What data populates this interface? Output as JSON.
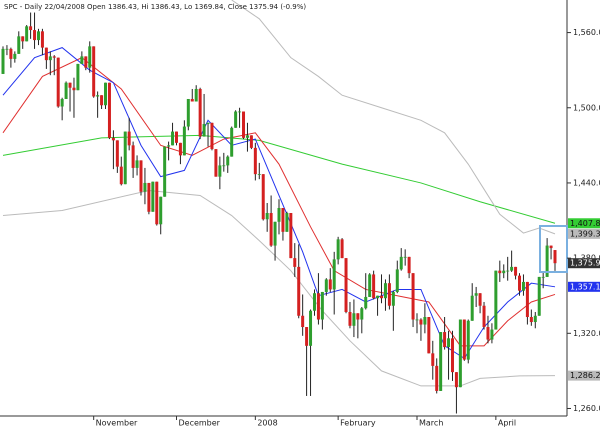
{
  "chart_data": {
    "type": "candlestick",
    "title": "SPC - Daily 22/04/2008 Open 1386.43, Hi 1386.43, Lo 1369.84, Close 1375.94 (-0.9%)",
    "categories": [
      null,
      null,
      null,
      null,
      null,
      null,
      null,
      null,
      null,
      null,
      null,
      null,
      null,
      null,
      null,
      null,
      null,
      null,
      null,
      null,
      null,
      null,
      null,
      "November",
      null,
      null,
      null,
      null,
      null,
      null,
      null,
      null,
      null,
      null,
      null,
      null,
      null,
      null,
      null,
      null,
      null,
      null,
      null,
      null,
      "December",
      null,
      null,
      null,
      null,
      null,
      null,
      null,
      null,
      null,
      null,
      null,
      null,
      null,
      null,
      null,
      null,
      null,
      null,
      null,
      "2008",
      null,
      null,
      null,
      null,
      null,
      null,
      null,
      null,
      null,
      null,
      null,
      null,
      null,
      null,
      null,
      null,
      null,
      null,
      null,
      null,
      "February",
      null,
      null,
      null,
      null,
      null,
      null,
      null,
      null,
      null,
      null,
      null,
      null,
      null,
      null,
      null,
      null,
      null,
      null,
      null,
      "March",
      null,
      null,
      null,
      null,
      null,
      null,
      null,
      null,
      null,
      null,
      null,
      null,
      null,
      null,
      null,
      null,
      null,
      null,
      null,
      "April",
      null,
      null,
      null,
      null,
      null,
      null,
      null,
      null,
      null,
      null,
      null,
      null,
      null,
      null,
      null
    ],
    "ohlc": [
      [
        1527,
        1549,
        1527,
        1547
      ],
      [
        1547,
        1550,
        1542,
        1547
      ],
      [
        1547,
        1548,
        1532,
        1539
      ],
      [
        1539,
        1545,
        1536,
        1543
      ],
      [
        1543,
        1561,
        1543,
        1557
      ],
      [
        1557,
        1557,
        1547,
        1553
      ],
      [
        1553,
        1566,
        1553,
        1565
      ],
      [
        1565,
        1576,
        1555,
        1562
      ],
      [
        1562,
        1576,
        1547,
        1554
      ],
      [
        1554,
        1563,
        1550,
        1561
      ],
      [
        1561,
        1563,
        1542,
        1548
      ],
      [
        1548,
        1548,
        1531,
        1538
      ],
      [
        1538,
        1545,
        1526,
        1541
      ],
      [
        1541,
        1542,
        1526,
        1540
      ],
      [
        1540,
        1540,
        1500,
        1501
      ],
      [
        1501,
        1508,
        1490,
        1507
      ],
      [
        1507,
        1521,
        1507,
        1520
      ],
      [
        1520,
        1520,
        1497,
        1516
      ],
      [
        1516,
        1524,
        1492,
        1514
      ],
      [
        1514,
        1535,
        1514,
        1535
      ],
      [
        1535,
        1545,
        1535,
        1541
      ],
      [
        1541,
        1541,
        1530,
        1532
      ],
      [
        1532,
        1553,
        1528,
        1549
      ],
      [
        1549,
        1549,
        1508,
        1509
      ],
      [
        1509,
        1513,
        1492,
        1510
      ],
      [
        1510,
        1510,
        1499,
        1502
      ],
      [
        1502,
        1520,
        1499,
        1520
      ],
      [
        1520,
        1520,
        1475,
        1476
      ],
      [
        1476,
        1482,
        1451,
        1474
      ],
      [
        1474,
        1474,
        1448,
        1453
      ],
      [
        1453,
        1461,
        1438,
        1439
      ],
      [
        1439,
        1481,
        1439,
        1481
      ],
      [
        1481,
        1492,
        1466,
        1470
      ],
      [
        1470,
        1473,
        1444,
        1452
      ],
      [
        1452,
        1462,
        1446,
        1458
      ],
      [
        1458,
        1458,
        1430,
        1433
      ],
      [
        1433,
        1452,
        1423,
        1440
      ],
      [
        1440,
        1440,
        1415,
        1417
      ],
      [
        1417,
        1441,
        1417,
        1441
      ],
      [
        1441,
        1441,
        1406,
        1407
      ],
      [
        1407,
        1429,
        1399,
        1429
      ],
      [
        1429,
        1469,
        1429,
        1469
      ],
      [
        1469,
        1473,
        1458,
        1470
      ],
      [
        1470,
        1488,
        1470,
        1481
      ],
      [
        1481,
        1481,
        1470,
        1472
      ],
      [
        1472,
        1472,
        1455,
        1462
      ],
      [
        1462,
        1490,
        1462,
        1485
      ],
      [
        1485,
        1507,
        1482,
        1507
      ],
      [
        1507,
        1515,
        1505,
        1505
      ],
      [
        1505,
        1518,
        1505,
        1515
      ],
      [
        1515,
        1516,
        1475,
        1477
      ],
      [
        1477,
        1511,
        1477,
        1487
      ],
      [
        1487,
        1488,
        1469,
        1488
      ],
      [
        1488,
        1488,
        1466,
        1467
      ],
      [
        1467,
        1467,
        1445,
        1445
      ],
      [
        1445,
        1461,
        1435,
        1454
      ],
      [
        1454,
        1464,
        1449,
        1454
      ],
      [
        1454,
        1462,
        1448,
        1461
      ],
      [
        1461,
        1485,
        1461,
        1484
      ],
      [
        1484,
        1498,
        1484,
        1497
      ],
      [
        1497,
        1500,
        1484,
        1497
      ],
      [
        1497,
        1497,
        1475,
        1476
      ],
      [
        1476,
        1488,
        1465,
        1478
      ],
      [
        1478,
        1478,
        1467,
        1468
      ],
      [
        1468,
        1472,
        1442,
        1447
      ],
      [
        1447,
        1456,
        1443,
        1447
      ],
      [
        1447,
        1447,
        1410,
        1411
      ],
      [
        1411,
        1424,
        1401,
        1416
      ],
      [
        1416,
        1430,
        1389,
        1390
      ],
      [
        1390,
        1409,
        1378,
        1409
      ],
      [
        1409,
        1427,
        1399,
        1420
      ],
      [
        1420,
        1420,
        1394,
        1401
      ],
      [
        1401,
        1417,
        1401,
        1416
      ],
      [
        1416,
        1416,
        1380,
        1380
      ],
      [
        1380,
        1392,
        1365,
        1373
      ],
      [
        1373,
        1391,
        1332,
        1334
      ],
      [
        1334,
        1351,
        1318,
        1325
      ],
      [
        1325,
        1325,
        1270,
        1310
      ],
      [
        1310,
        1339,
        1270,
        1338
      ],
      [
        1338,
        1355,
        1334,
        1352
      ],
      [
        1352,
        1368,
        1327,
        1331
      ],
      [
        1331,
        1353,
        1323,
        1353
      ],
      [
        1353,
        1364,
        1350,
        1363
      ],
      [
        1363,
        1372,
        1353,
        1355
      ],
      [
        1355,
        1385,
        1335,
        1379
      ],
      [
        1379,
        1397,
        1375,
        1395
      ],
      [
        1395,
        1396,
        1380,
        1380
      ],
      [
        1380,
        1380,
        1336,
        1337
      ],
      [
        1337,
        1345,
        1324,
        1326
      ],
      [
        1326,
        1347,
        1317,
        1336
      ],
      [
        1336,
        1336,
        1316,
        1331
      ],
      [
        1331,
        1341,
        1320,
        1340
      ],
      [
        1340,
        1368,
        1339,
        1349
      ],
      [
        1349,
        1368,
        1349,
        1367
      ],
      [
        1367,
        1370,
        1347,
        1348
      ],
      [
        1348,
        1350,
        1334,
        1350
      ],
      [
        1350,
        1367,
        1344,
        1348
      ],
      [
        1348,
        1363,
        1338,
        1360
      ],
      [
        1360,
        1367,
        1339,
        1342
      ],
      [
        1342,
        1354,
        1322,
        1353
      ],
      [
        1353,
        1378,
        1352,
        1371
      ],
      [
        1371,
        1388,
        1370,
        1381
      ],
      [
        1381,
        1387,
        1374,
        1381
      ],
      [
        1381,
        1381,
        1364,
        1368
      ],
      [
        1368,
        1368,
        1325,
        1331
      ],
      [
        1331,
        1336,
        1320,
        1331
      ],
      [
        1331,
        1332,
        1314,
        1327
      ],
      [
        1327,
        1344,
        1320,
        1333
      ],
      [
        1333,
        1333,
        1304,
        1304
      ],
      [
        1304,
        1314,
        1283,
        1294
      ],
      [
        1294,
        1300,
        1272,
        1274
      ],
      [
        1274,
        1321,
        1274,
        1321
      ],
      [
        1321,
        1333,
        1307,
        1309
      ],
      [
        1309,
        1322,
        1283,
        1316
      ],
      [
        1316,
        1322,
        1282,
        1289
      ],
      [
        1289,
        1289,
        1256,
        1277
      ],
      [
        1277,
        1331,
        1277,
        1331
      ],
      [
        1331,
        1331,
        1298,
        1299
      ],
      [
        1299,
        1331,
        1296,
        1330
      ],
      [
        1330,
        1360,
        1330,
        1350
      ],
      [
        1350,
        1357,
        1341,
        1352
      ],
      [
        1352,
        1352,
        1336,
        1342
      ],
      [
        1342,
        1345,
        1323,
        1325
      ],
      [
        1325,
        1334,
        1312,
        1315
      ],
      [
        1315,
        1328,
        1312,
        1323
      ],
      [
        1323,
        1370,
        1323,
        1370
      ],
      [
        1370,
        1378,
        1361,
        1368
      ],
      [
        1368,
        1375,
        1364,
        1370
      ],
      [
        1370,
        1381,
        1362,
        1370
      ],
      [
        1370,
        1386,
        1369,
        1373
      ],
      [
        1373,
        1373,
        1363,
        1366
      ],
      [
        1366,
        1368,
        1350,
        1354
      ],
      [
        1354,
        1367,
        1350,
        1361
      ],
      [
        1361,
        1361,
        1327,
        1333
      ],
      [
        1333,
        1339,
        1326,
        1329
      ],
      [
        1329,
        1337,
        1324,
        1334
      ],
      [
        1334,
        1365,
        1334,
        1365
      ],
      [
        1365,
        1369,
        1356,
        1365
      ],
      [
        1365,
        1396,
        1365,
        1390
      ],
      [
        1390,
        1390,
        1379,
        1388
      ],
      [
        1386.43,
        1386.43,
        1369.84,
        1375.94
      ]
    ],
    "up_color": "#2e9e2e",
    "down_color": "#d42020",
    "close_label": "1,375.94",
    "overlays": [
      {
        "color": "#33cc33",
        "x": [
          0,
          25,
          50,
          65,
          86,
          106,
          121,
          140
        ],
        "values": [
          1462,
          1476,
          1478,
          1474,
          1455,
          1440,
          1425,
          1407.81
        ],
        "value_label": "1,407.81"
      },
      {
        "color": "#bbbbbb",
        "x": [
          58,
          65,
          73,
          80,
          86,
          96,
          106,
          112,
          118,
          122,
          126,
          132,
          136,
          140
        ],
        "values": [
          1586,
          1571,
          1540,
          1525,
          1510,
          1500,
          1490,
          1480,
          1455,
          1435,
          1415,
          1400,
          1404,
          1399.36
        ],
        "value_label": "1,399.36"
      },
      {
        "color": "#bbbbbb",
        "x": [
          0,
          15,
          37,
          50,
          58,
          65,
          73,
          81,
          88,
          96,
          106,
          116,
          121,
          131,
          140
        ],
        "values": [
          1414,
          1418,
          1434,
          1430,
          1414,
          1394,
          1370,
          1338,
          1314,
          1290,
          1278,
          1278,
          1284,
          1286,
          1286.22
        ],
        "value_label": "1,286.22"
      },
      {
        "color": "#e03030",
        "x": [
          0,
          10,
          20,
          30,
          40,
          48,
          56,
          64,
          70,
          78,
          84,
          92,
          100,
          108,
          116,
          122,
          128,
          134,
          140
        ],
        "values": [
          1480,
          1525,
          1540,
          1515,
          1470,
          1462,
          1475,
          1480,
          1455,
          1405,
          1370,
          1355,
          1350,
          1345,
          1310,
          1310,
          1330,
          1345,
          1351
        ]
      },
      {
        "color": "#2233ee",
        "x": [
          0,
          8,
          15,
          22,
          28,
          35,
          40,
          46,
          52,
          58,
          64,
          70,
          76,
          80,
          86,
          92,
          100,
          106,
          112,
          117,
          122,
          128,
          134,
          140
        ],
        "values": [
          1510,
          1540,
          1548,
          1530,
          1520,
          1470,
          1445,
          1450,
          1490,
          1470,
          1475,
          1430,
          1385,
          1350,
          1355,
          1345,
          1355,
          1355,
          1310,
          1300,
          1325,
          1345,
          1360,
          1357.1
        ],
        "value_label": "1,357.1"
      }
    ],
    "ylim": [
      1254,
      1586
    ],
    "yticks": [
      {
        "value": 1560,
        "label": "1,560.00"
      },
      {
        "value": 1500,
        "label": "1,500.00"
      },
      {
        "value": 1440,
        "label": "1,440.00"
      },
      {
        "value": 1380,
        "label": "1,380.00"
      },
      {
        "value": 1320,
        "label": "1,320.00"
      },
      {
        "value": 1260,
        "label": "1,260.00"
      }
    ]
  }
}
